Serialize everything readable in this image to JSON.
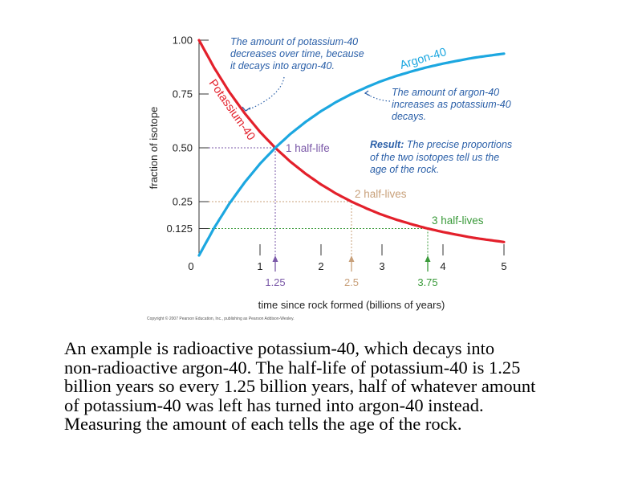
{
  "chart_data": {
    "type": "line",
    "xlabel": "time since rock formed (billions of years)",
    "ylabel": "fraction of isotope",
    "xlim": [
      0,
      5
    ],
    "ylim": [
      0,
      1
    ],
    "x_ticks": [
      "0",
      "1",
      "2",
      "3",
      "4",
      "5"
    ],
    "y_ticks": [
      {
        "value": 1.0,
        "label": "1.00"
      },
      {
        "value": 0.75,
        "label": "0.75"
      },
      {
        "value": 0.5,
        "label": "0.50"
      },
      {
        "value": 0.25,
        "label": "0.25"
      },
      {
        "value": 0.125,
        "label": "0.125"
      }
    ],
    "half_life": 1.25,
    "series": [
      {
        "name": "Potassium-40",
        "color": "#e3202b",
        "x": [
          0,
          0.25,
          0.5,
          0.75,
          1.0,
          1.25,
          1.5,
          1.75,
          2.0,
          2.25,
          2.5,
          2.75,
          3.0,
          3.25,
          3.5,
          3.75,
          4.0,
          4.25,
          4.5,
          4.75,
          5.0
        ],
        "values": [
          1.0,
          0.871,
          0.758,
          0.66,
          0.574,
          0.5,
          0.435,
          0.379,
          0.33,
          0.287,
          0.25,
          0.218,
          0.189,
          0.165,
          0.144,
          0.125,
          0.109,
          0.095,
          0.082,
          0.072,
          0.0625
        ]
      },
      {
        "name": "Argon-40",
        "color": "#1ca7e0",
        "x": [
          0,
          0.25,
          0.5,
          0.75,
          1.0,
          1.25,
          1.5,
          1.75,
          2.0,
          2.25,
          2.5,
          2.75,
          3.0,
          3.25,
          3.5,
          3.75,
          4.0,
          4.25,
          4.5,
          4.75,
          5.0
        ],
        "values": [
          0.0,
          0.129,
          0.242,
          0.34,
          0.426,
          0.5,
          0.565,
          0.621,
          0.67,
          0.713,
          0.75,
          0.782,
          0.811,
          0.835,
          0.856,
          0.875,
          0.891,
          0.905,
          0.918,
          0.928,
          0.9375
        ]
      }
    ],
    "half_lives": [
      {
        "x": 1.25,
        "x_label": "1.25",
        "y": 0.5,
        "label": "1 half-life",
        "color": "#7b59a8"
      },
      {
        "x": 2.5,
        "x_label": "2.5",
        "y": 0.25,
        "label": "2 half-lives",
        "color": "#c8a07a"
      },
      {
        "x": 3.75,
        "x_label": "3.75",
        "y": 0.125,
        "label": "3 half-lives",
        "color": "#3a9a3a"
      }
    ],
    "annotations": {
      "potassium_note": [
        "The amount of potassium-40",
        "decreases over time, because",
        "it decays into argon-40."
      ],
      "argon_note": [
        "The amount of argon-40",
        "increases as potassium-40",
        "decays."
      ],
      "result_label": "Result:",
      "result_note": [
        " The precise proportions",
        "of the two isotopes tell us the",
        "age of the rock."
      ],
      "annotation_color": "#2a5fa8",
      "copyright": "Copyright © 2007 Pearson Education, Inc., publishing as Pearson Addison-Wesley."
    }
  },
  "caption": {
    "lines": [
      "An example is radioactive potassium-40, which decays into",
      "non-radioactive argon-40.  The half-life of potassium-40 is 1.25",
      "billion years so every 1.25 billion years, half of whatever amount",
      "of potassium-40 was left has turned into argon-40 instead.",
      "Measuring the amount of each tells the age of the rock."
    ]
  }
}
